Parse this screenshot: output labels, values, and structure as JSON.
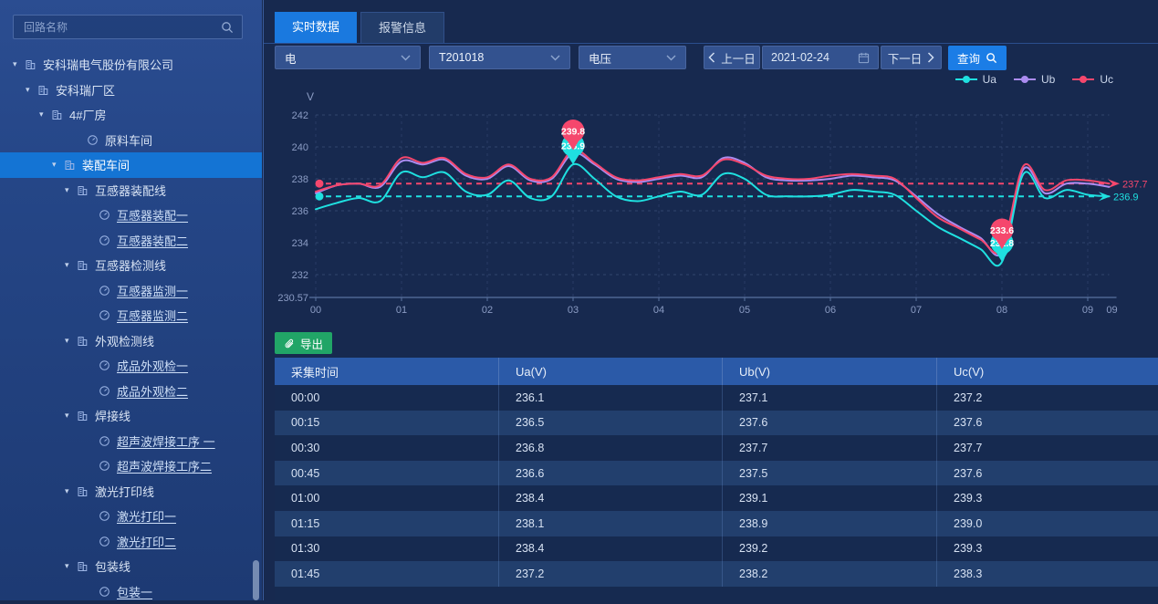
{
  "colors": {
    "accent_blue": "#1a79df",
    "selected_blue": "#1474d4",
    "export_green": "#21a567",
    "ua": "#1fe0e0",
    "ub": "#ab8cf0",
    "uc": "#f5476d"
  },
  "sidebar": {
    "search_placeholder": "回路名称",
    "tree": [
      {
        "label": "安科瑞电气股份有限公司",
        "indent": 14,
        "type": "site",
        "caret": true
      },
      {
        "label": "安科瑞厂区",
        "indent": 28,
        "type": "site",
        "caret": true
      },
      {
        "label": "4#厂房",
        "indent": 43,
        "type": "site",
        "caret": true
      },
      {
        "label": "原料车间",
        "indent": 95,
        "type": "device",
        "caret": false
      },
      {
        "label": "装配车间",
        "indent": 57,
        "type": "site",
        "caret": true,
        "selected": true
      },
      {
        "label": "互感器装配线",
        "indent": 71,
        "type": "site",
        "caret": true
      },
      {
        "label": "互感器装配一",
        "indent": 108,
        "type": "device",
        "link": true
      },
      {
        "label": "互感器装配二",
        "indent": 108,
        "type": "device",
        "link": true
      },
      {
        "label": "互感器检测线",
        "indent": 71,
        "type": "site",
        "caret": true
      },
      {
        "label": "互感器监测一",
        "indent": 108,
        "type": "device",
        "link": true
      },
      {
        "label": "互感器监测二",
        "indent": 108,
        "type": "device",
        "link": true
      },
      {
        "label": "外观检测线",
        "indent": 71,
        "type": "site",
        "caret": true
      },
      {
        "label": "成品外观检一",
        "indent": 108,
        "type": "device",
        "link": true
      },
      {
        "label": "成品外观检二",
        "indent": 108,
        "type": "device",
        "link": true
      },
      {
        "label": "焊接线",
        "indent": 71,
        "type": "site",
        "caret": true
      },
      {
        "label": "超声波焊接工序 一",
        "indent": 108,
        "type": "device",
        "link": true
      },
      {
        "label": "超声波焊接工序二",
        "indent": 108,
        "type": "device",
        "link": true
      },
      {
        "label": "激光打印线",
        "indent": 71,
        "type": "site",
        "caret": true
      },
      {
        "label": "激光打印一",
        "indent": 108,
        "type": "device",
        "link": true
      },
      {
        "label": "激光打印二",
        "indent": 108,
        "type": "device",
        "link": true
      },
      {
        "label": "包装线",
        "indent": 71,
        "type": "site",
        "caret": true
      },
      {
        "label": "包装一",
        "indent": 108,
        "type": "device",
        "link": true
      }
    ]
  },
  "tabs": [
    {
      "label": "实时数据",
      "active": true
    },
    {
      "label": "报警信息",
      "active": false
    }
  ],
  "filters": {
    "selects": [
      {
        "key": "energy-type-select",
        "value": "电"
      },
      {
        "key": "device-select",
        "value": "T201018"
      },
      {
        "key": "metric-select",
        "value": "电压"
      }
    ],
    "prev_label": "上一日",
    "date": "2021-02-24",
    "next_label": "下一日",
    "query_label": "查询"
  },
  "icons": {
    "tree_caret": "▾"
  },
  "export_label": "导出",
  "chart_data": {
    "type": "line",
    "axis_title": "V",
    "ylim": [
      230.57,
      242
    ],
    "yticks": [
      242,
      240,
      238,
      236,
      234,
      232
    ],
    "ybase_label": "230.57",
    "xticks": [
      "00",
      "01",
      "02",
      "03",
      "04",
      "05",
      "06",
      "07",
      "08",
      "09"
    ],
    "x_edge_label": "09",
    "grid": true,
    "legend_position": "top-right",
    "x": [
      "00:00",
      "00:15",
      "00:30",
      "00:45",
      "01:00",
      "01:15",
      "01:30",
      "01:45",
      "02:00",
      "02:15",
      "02:30",
      "02:45",
      "03:00",
      "03:15",
      "03:30",
      "03:45",
      "04:00",
      "04:15",
      "04:30",
      "04:45",
      "05:00",
      "05:15",
      "05:30",
      "05:45",
      "06:00",
      "06:15",
      "06:30",
      "06:45",
      "07:00",
      "07:15",
      "07:30",
      "07:45",
      "08:00",
      "08:15",
      "08:30",
      "08:45",
      "09:00",
      "09:15"
    ],
    "series": [
      {
        "name": "Ua",
        "color": "#1fe0e0",
        "values": [
          236.1,
          236.5,
          236.8,
          236.6,
          238.4,
          238.1,
          238.4,
          237.2,
          237.0,
          237.9,
          236.8,
          236.9,
          238.9,
          238.0,
          236.9,
          236.6,
          236.9,
          237.2,
          237.0,
          238.3,
          238.0,
          237.0,
          236.9,
          236.9,
          237.0,
          237.3,
          237.2,
          237.0,
          236.0,
          235.0,
          234.3,
          233.6,
          232.8,
          238.3,
          236.8,
          237.3,
          237.0,
          236.9
        ]
      },
      {
        "name": "Ub",
        "color": "#ab8cf0",
        "values": [
          237.1,
          237.6,
          237.7,
          237.5,
          239.1,
          238.9,
          239.2,
          238.2,
          238.0,
          238.8,
          237.9,
          238.0,
          239.6,
          238.9,
          238.0,
          237.8,
          238.0,
          238.2,
          238.1,
          239.3,
          239.0,
          238.1,
          237.9,
          237.9,
          238.0,
          238.2,
          238.1,
          237.9,
          236.9,
          235.8,
          235.0,
          234.3,
          233.4,
          238.6,
          237.1,
          237.7,
          237.7,
          237.5
        ]
      },
      {
        "name": "Uc",
        "color": "#f5476d",
        "values": [
          237.2,
          237.6,
          237.7,
          237.6,
          239.3,
          239.0,
          239.3,
          238.3,
          238.1,
          238.9,
          238.0,
          238.1,
          239.8,
          239.0,
          238.1,
          237.9,
          238.1,
          238.3,
          238.2,
          239.2,
          238.9,
          238.2,
          238.0,
          238.0,
          238.2,
          238.3,
          238.2,
          238.0,
          236.8,
          235.6,
          234.9,
          234.2,
          233.6,
          238.8,
          237.3,
          237.9,
          237.9,
          237.7
        ]
      }
    ],
    "markpoints": [
      {
        "series": "Uc",
        "time": "03:00",
        "value": 239.8,
        "label": "239.8"
      },
      {
        "series": "Ua",
        "time": "03:00",
        "value": 238.9,
        "label": "238.9"
      },
      {
        "series": "Uc",
        "time": "08:00",
        "value": 233.6,
        "label": "233.6"
      },
      {
        "series": "Ua",
        "time": "08:00",
        "value": 232.8,
        "label": "232.8"
      }
    ],
    "marklines": [
      {
        "series": "Uc",
        "value": 237.7,
        "label": "237.7"
      },
      {
        "series": "Ua",
        "value": 236.9,
        "label": "236.9"
      }
    ]
  },
  "table": {
    "headers": [
      "采集时间",
      "Ua(V)",
      "Ub(V)",
      "Uc(V)"
    ],
    "rows": [
      [
        "00:00",
        "236.1",
        "237.1",
        "237.2"
      ],
      [
        "00:15",
        "236.5",
        "237.6",
        "237.6"
      ],
      [
        "00:30",
        "236.8",
        "237.7",
        "237.7"
      ],
      [
        "00:45",
        "236.6",
        "237.5",
        "237.6"
      ],
      [
        "01:00",
        "238.4",
        "239.1",
        "239.3"
      ],
      [
        "01:15",
        "238.1",
        "238.9",
        "239.0"
      ],
      [
        "01:30",
        "238.4",
        "239.2",
        "239.3"
      ],
      [
        "01:45",
        "237.2",
        "238.2",
        "238.3"
      ]
    ]
  }
}
